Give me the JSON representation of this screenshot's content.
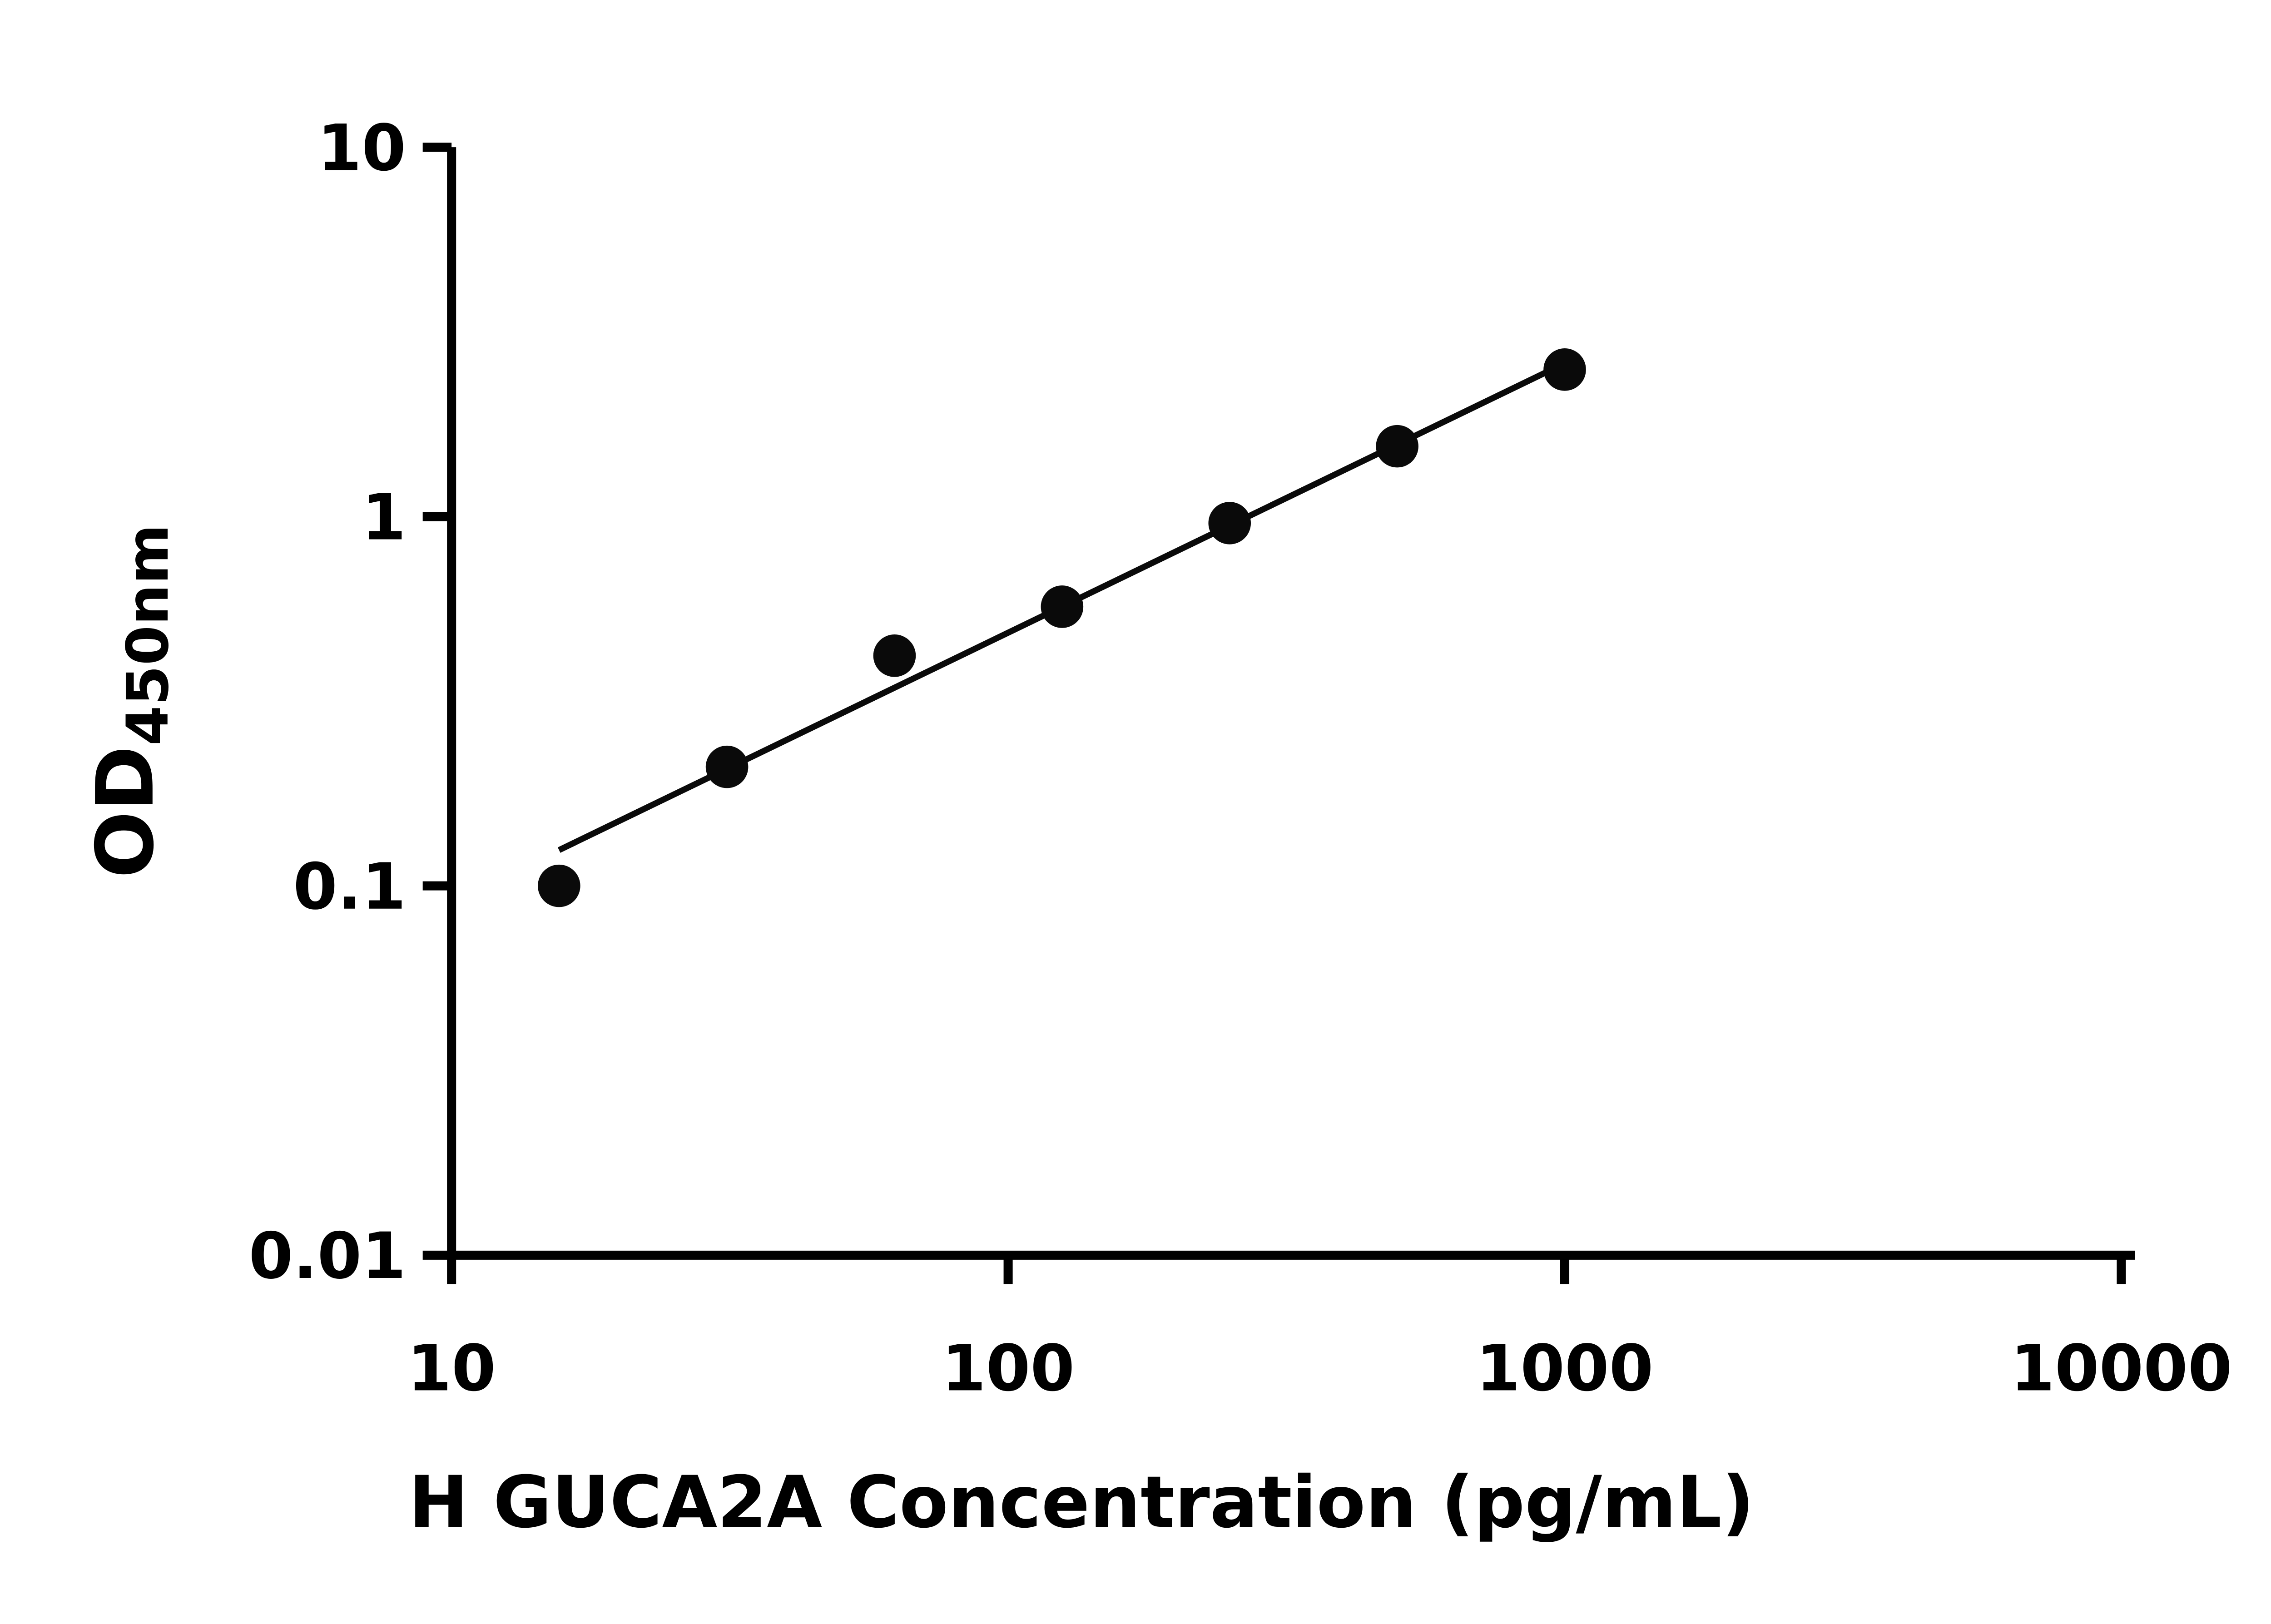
{
  "chart_data": {
    "type": "scatter",
    "title": "",
    "xlabel": "H GUCA2A Concentration (pg/mL)",
    "ylabel": "OD",
    "ylabel_subscript": "450nm",
    "x_scale": "log",
    "y_scale": "log",
    "xlim": [
      10,
      10000
    ],
    "ylim": [
      0.01,
      10
    ],
    "x_ticks": [
      10,
      100,
      1000,
      10000
    ],
    "x_tick_labels": [
      "10",
      "100",
      "1000",
      "10000"
    ],
    "y_ticks": [
      10,
      1,
      0.1,
      0.01
    ],
    "y_tick_labels": [
      "10",
      "1",
      "0.1",
      "0.01"
    ],
    "grid": false,
    "legend_position": "none",
    "series": [
      {
        "name": "standard-curve-points",
        "marker": "filled-circle",
        "x": [
          15.6,
          31.25,
          62.5,
          125,
          250,
          500,
          1000
        ],
        "y": [
          0.1,
          0.21,
          0.42,
          0.57,
          0.96,
          1.55,
          2.5
        ]
      }
    ],
    "trend_line": {
      "name": "log-log-linear-fit",
      "x": [
        15.6,
        1000
      ],
      "y": [
        0.125,
        2.6
      ]
    },
    "colors": {
      "marker": "#0a0a0a",
      "line": "#0a0a0a",
      "axis": "#000000",
      "background": "#ffffff",
      "text": "#000000"
    }
  }
}
